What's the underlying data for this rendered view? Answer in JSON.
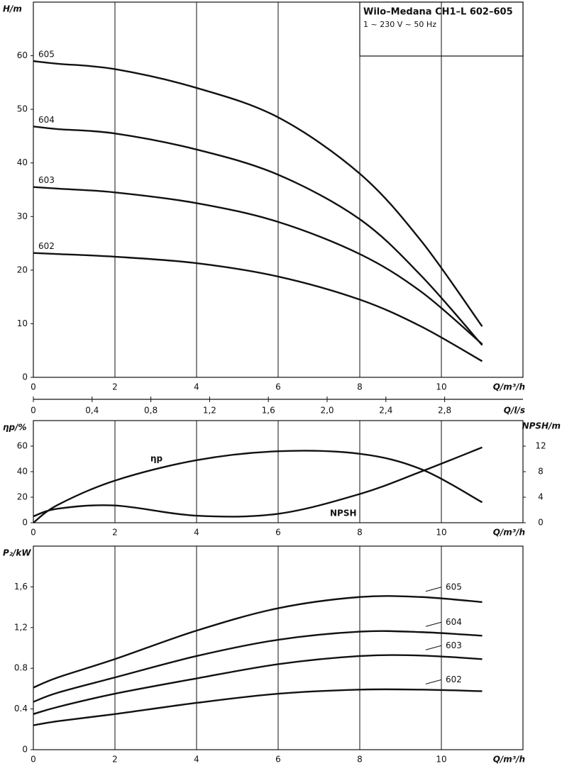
{
  "chart_data": [
    {
      "type": "line",
      "title": "Wilo–Medana CH1–L 602–605",
      "subtitle": "1 ~ 230 V ~ 50 Hz",
      "xlabel": "Q/m³/h",
      "ylabel": "H/m",
      "xlim": [
        0,
        12
      ],
      "xticks": [
        0,
        2,
        4,
        6,
        8,
        10
      ],
      "ylim": [
        0,
        70
      ],
      "yticks": [
        0,
        10,
        20,
        30,
        40,
        50,
        60
      ],
      "grid": true,
      "x2label": "Q/l/s",
      "x2lim": [
        0,
        3.3333
      ],
      "x2ticks": [
        0,
        {
          "value": 0.4,
          "label": "0,4"
        },
        {
          "value": 0.8,
          "label": "0,8"
        },
        {
          "value": 1.2,
          "label": "1,2"
        },
        {
          "value": 1.6,
          "label": "1,6"
        },
        {
          "value": 2.0,
          "label": "2,0"
        },
        {
          "value": 2.4,
          "label": "2,4"
        },
        {
          "value": 2.8,
          "label": "2,8"
        }
      ],
      "x": [
        0,
        0.6,
        2,
        4,
        6,
        8,
        9.5,
        11
      ],
      "series": [
        {
          "name": "605",
          "color": "#111111",
          "values": [
            59,
            58.5,
            57.5,
            54,
            48.5,
            38,
            25.5,
            9.5
          ]
        },
        {
          "name": "604",
          "color": "#111111",
          "values": [
            46.8,
            46.3,
            45.5,
            42.5,
            37.8,
            29.5,
            19,
            6
          ]
        },
        {
          "name": "603",
          "color": "#111111",
          "values": [
            35.5,
            35.2,
            34.5,
            32.5,
            29,
            23,
            16,
            6.2
          ]
        },
        {
          "name": "602",
          "color": "#111111",
          "values": [
            23.2,
            23,
            22.5,
            21.3,
            18.8,
            14.5,
            9.5,
            3
          ]
        }
      ]
    },
    {
      "type": "line",
      "xlabel": "Q/m³/h",
      "ylabel": "ηp/%",
      "y2label": "NPSH/m",
      "xlim": [
        0,
        12
      ],
      "xticks": [
        0,
        2,
        4,
        6,
        8,
        10
      ],
      "ylim": [
        0,
        80
      ],
      "yticks": [
        0,
        20,
        40,
        60
      ],
      "y2lim": [
        0,
        16
      ],
      "y2ticks": [
        0,
        4,
        8,
        12
      ],
      "grid": true,
      "x": [
        0,
        0.6,
        2,
        4,
        6,
        8,
        9.5,
        11
      ],
      "series": [
        {
          "name": "ηp",
          "color": "#111111",
          "values": [
            0,
            14,
            33,
            49,
            56,
            54,
            42,
            16
          ]
        },
        {
          "name": "NPSH",
          "color": "#111111",
          "axis": "y2",
          "values": [
            1,
            2.2,
            2.7,
            1.1,
            1.4,
            4.5,
            8,
            11.8
          ]
        }
      ]
    },
    {
      "type": "line",
      "xlabel": "Q/m³/h",
      "ylabel": "P₂/kW",
      "xlim": [
        0,
        12
      ],
      "xticks": [
        0,
        2,
        4,
        6,
        8,
        10
      ],
      "ylim": [
        0,
        2
      ],
      "yticks": [
        0,
        0.4,
        0.8,
        {
          "value": 1.2,
          "label": "1,2"
        },
        {
          "value": 1.6,
          "label": "1,6"
        }
      ],
      "grid": true,
      "x": [
        0,
        0.6,
        2,
        4,
        6,
        8,
        9.5,
        11
      ],
      "series": [
        {
          "name": "605",
          "color": "#111111",
          "values": [
            0.61,
            0.71,
            0.89,
            1.17,
            1.39,
            1.5,
            1.5,
            1.45
          ]
        },
        {
          "name": "604",
          "color": "#111111",
          "values": [
            0.47,
            0.56,
            0.71,
            0.92,
            1.08,
            1.16,
            1.155,
            1.12
          ]
        },
        {
          "name": "603",
          "color": "#111111",
          "values": [
            0.35,
            0.42,
            0.55,
            0.7,
            0.84,
            0.92,
            0.925,
            0.89
          ]
        },
        {
          "name": "602",
          "color": "#111111",
          "values": [
            0.24,
            0.28,
            0.35,
            0.46,
            0.55,
            0.59,
            0.59,
            0.575
          ]
        }
      ]
    }
  ]
}
